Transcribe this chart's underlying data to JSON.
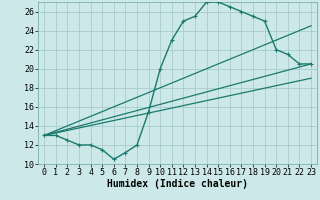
{
  "title": "",
  "xlabel": "Humidex (Indice chaleur)",
  "bg_color": "#cce8e8",
  "grid_color": "#aacccc",
  "line_color": "#1a7a6e",
  "xlim": [
    -0.5,
    23.5
  ],
  "ylim": [
    10,
    27
  ],
  "yticks": [
    10,
    12,
    14,
    16,
    18,
    20,
    22,
    24,
    26
  ],
  "xticks": [
    0,
    1,
    2,
    3,
    4,
    5,
    6,
    7,
    8,
    9,
    10,
    11,
    12,
    13,
    14,
    15,
    16,
    17,
    18,
    19,
    20,
    21,
    22,
    23
  ],
  "series1_x": [
    0,
    1,
    2,
    3,
    4,
    5,
    6,
    7,
    8,
    9,
    10,
    11,
    12,
    13,
    14,
    15,
    16,
    17,
    18,
    19,
    20,
    21,
    22,
    23
  ],
  "series1_y": [
    13,
    13,
    12.5,
    12,
    12,
    11.5,
    10.5,
    11.2,
    12,
    15.5,
    20,
    23,
    25,
    25.5,
    27,
    27,
    26.5,
    26,
    25.5,
    25,
    22,
    21.5,
    20.5,
    20.5
  ],
  "series2_x": [
    0,
    23
  ],
  "series2_y": [
    13,
    24.5
  ],
  "series3_x": [
    0,
    23
  ],
  "series3_y": [
    13,
    20.5
  ],
  "series4_x": [
    0,
    23
  ],
  "series4_y": [
    13,
    19.0
  ],
  "marker_size": 2.5,
  "lw1": 1.0,
  "lw2": 0.9,
  "lw3": 0.9,
  "lw4": 0.9,
  "font_size_label": 7,
  "font_size_tick": 6
}
